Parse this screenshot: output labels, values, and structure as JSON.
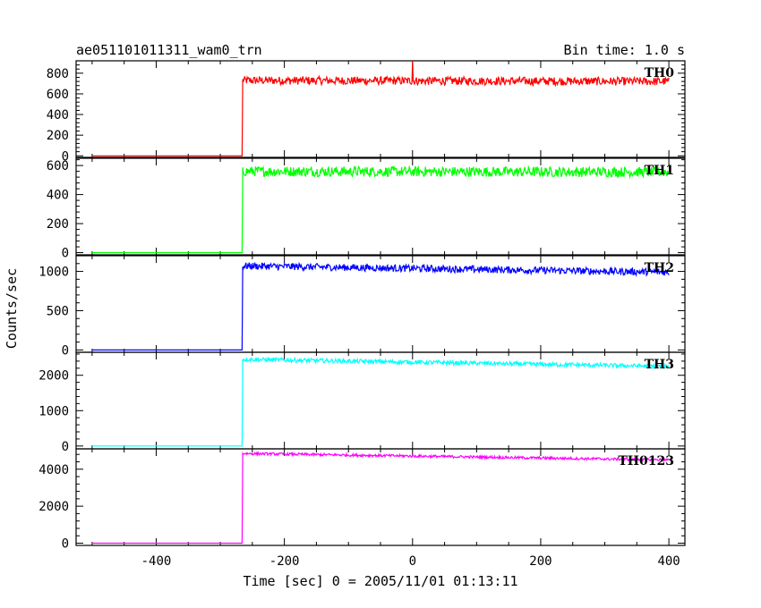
{
  "chart_data": {
    "type": "line",
    "title": "ae051101011311_wam0_trn",
    "subtitle": "Bin time: 1.0 s",
    "xlabel": "Time [sec] 0 = 2005/11/01 01:13:11",
    "ylabel": "Counts/sec",
    "xlim": [
      -525,
      425
    ],
    "xticks": [
      -400,
      -200,
      0,
      200,
      400
    ],
    "grid": false,
    "step_time": -265,
    "series": [
      {
        "name": "TH0",
        "color": "#ff0000",
        "ylim": [
          -15,
          920
        ],
        "yticks": [
          0,
          200,
          400,
          600,
          800
        ],
        "pre_level": 0,
        "post_start": 730,
        "post_end": 720,
        "noise": 40,
        "x": [
          -525,
          -265,
          -264,
          0,
          1,
          2,
          400
        ],
        "y": [
          0,
          0,
          730,
          700,
          920,
          700,
          720
        ]
      },
      {
        "name": "TH1",
        "color": "#00ff00",
        "ylim": [
          -15,
          650
        ],
        "yticks": [
          0,
          200,
          400,
          600
        ],
        "pre_level": 0,
        "post_start": 560,
        "post_end": 555,
        "noise": 35,
        "x": [
          -525,
          -265,
          -264,
          400
        ],
        "y": [
          0,
          0,
          560,
          555
        ]
      },
      {
        "name": "TH2",
        "color": "#0000ff",
        "ylim": [
          -30,
          1200
        ],
        "yticks": [
          0,
          500,
          1000
        ],
        "pre_level": 0,
        "post_start": 1070,
        "post_end": 990,
        "noise": 45,
        "x": [
          -525,
          -265,
          -264,
          400
        ],
        "y": [
          0,
          0,
          1070,
          990
        ]
      },
      {
        "name": "TH3",
        "color": "#00ffff",
        "ylim": [
          -80,
          2650
        ],
        "yticks": [
          0,
          1000,
          2000
        ],
        "pre_level": 0,
        "post_start": 2450,
        "post_end": 2250,
        "noise": 60,
        "x": [
          -525,
          -265,
          -264,
          400
        ],
        "y": [
          0,
          0,
          2450,
          2250
        ]
      },
      {
        "name": "TH0123",
        "color": "#ff00ff",
        "ylim": [
          -120,
          5100
        ],
        "yticks": [
          0,
          2000,
          4000
        ],
        "pre_level": 0,
        "post_start": 4850,
        "post_end": 4500,
        "noise": 70,
        "x": [
          -525,
          -265,
          -264,
          400
        ],
        "y": [
          0,
          0,
          4850,
          4500
        ]
      }
    ]
  }
}
